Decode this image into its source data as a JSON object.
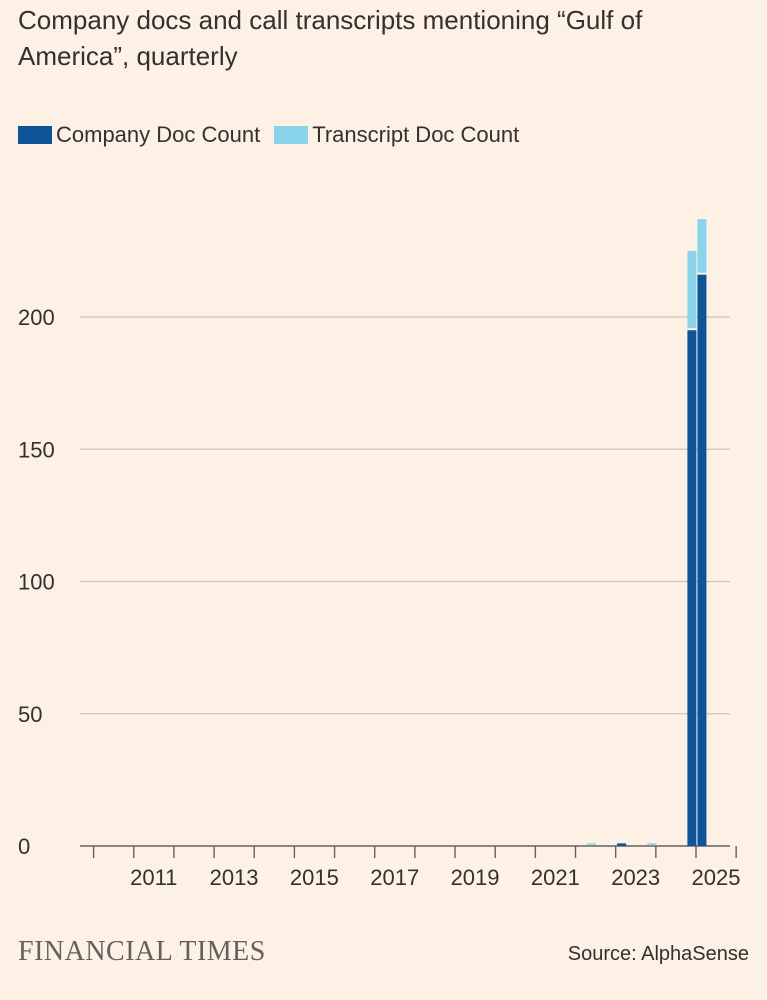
{
  "title": "Company docs and call transcripts mentioning “Gulf of America”, quarterly",
  "legend": [
    {
      "label": "Company Doc Count",
      "color": "#0f5499"
    },
    {
      "label": "Transcript Doc Count",
      "color": "#8ad4eb"
    }
  ],
  "footer": {
    "brand": "FINANCIAL TIMES",
    "source": "Source: AlphaSense"
  },
  "chart_data": {
    "type": "bar",
    "stacked": true,
    "ylim": [
      0,
      250
    ],
    "y_ticks": [
      0,
      50,
      100,
      150,
      200
    ],
    "x_tick_labels": [
      "2011",
      "2013",
      "2015",
      "2017",
      "2019",
      "2021",
      "2023",
      "2025"
    ],
    "x_range": [
      "2010 Q1",
      "2025 Q2"
    ],
    "grid": true,
    "legend_position": "top-left",
    "categories": [
      "2022 Q3",
      "2023 Q2",
      "2024 Q1",
      "2025 Q1",
      "2025 Q2"
    ],
    "series": [
      {
        "name": "Company Doc Count",
        "color": "#0f5499",
        "values": [
          0,
          1,
          0,
          195,
          216
        ]
      },
      {
        "name": "Transcript Doc Count",
        "color": "#8ad4eb",
        "values": [
          1,
          0,
          1,
          30,
          21
        ]
      }
    ]
  }
}
